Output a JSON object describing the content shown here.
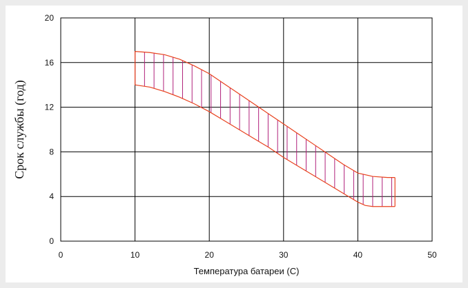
{
  "chart_data": {
    "type": "area",
    "xlabel": "Температура батареи (С)",
    "ylabel": "Срок службы  (год)",
    "xlim": [
      0,
      50
    ],
    "ylim": [
      0,
      20
    ],
    "x_ticks": [
      "0",
      "10",
      "20",
      "30",
      "40",
      "50"
    ],
    "y_ticks": [
      "0",
      "4",
      "8",
      "12",
      "16",
      "20"
    ],
    "grid": true,
    "colors": {
      "band_outline": "#e8401c",
      "hatch": "#b0207a",
      "grid": "#000000",
      "frame": "#ececec"
    },
    "series": [
      {
        "role": "upper",
        "x": [
          10,
          12,
          14,
          16,
          18,
          20,
          22,
          24,
          26,
          28,
          30,
          32,
          34,
          36,
          38,
          40,
          42,
          44,
          45
        ],
        "y": [
          17,
          16.9,
          16.7,
          16.3,
          15.7,
          15.0,
          14.1,
          13.2,
          12.3,
          11.4,
          10.5,
          9.6,
          8.7,
          7.8,
          6.9,
          6.1,
          5.8,
          5.7,
          5.7
        ]
      },
      {
        "role": "lower",
        "x": [
          10,
          12,
          14,
          16,
          18,
          20,
          22,
          24,
          26,
          28,
          30,
          32,
          34,
          36,
          38,
          40,
          41,
          42,
          43,
          44,
          45
        ],
        "y": [
          14.0,
          13.8,
          13.4,
          12.9,
          12.3,
          11.6,
          10.8,
          10.0,
          9.2,
          8.4,
          7.5,
          6.7,
          5.9,
          5.1,
          4.3,
          3.5,
          3.2,
          3.1,
          3.1,
          3.1,
          3.1
        ]
      }
    ]
  }
}
